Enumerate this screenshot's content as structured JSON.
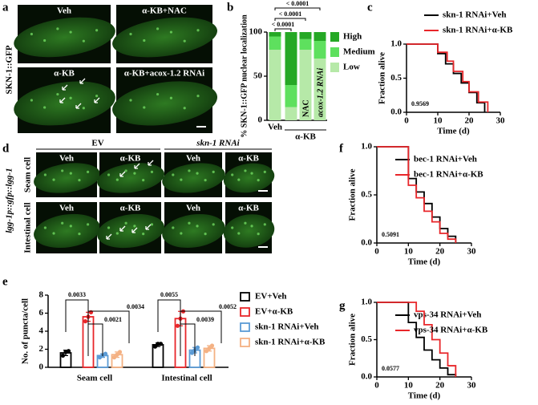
{
  "figure": {
    "panel_labels": [
      "a",
      "b",
      "c",
      "d",
      "e",
      "f",
      "g"
    ],
    "panel_a": {
      "ylabel": "SKN-1::GFP",
      "images": [
        "Veh",
        "α-KB+NAC",
        "α-KB",
        "α-KB+acox-1.2 RNAi"
      ]
    },
    "panel_d": {
      "ylabel": "lgg-1p::gfp::lgg-1",
      "groups": [
        "EV",
        "skn-1 RNAi"
      ],
      "rows": [
        "Seam cell",
        "Intestinal cell"
      ],
      "images": [
        "Veh",
        "α-KB",
        "Veh",
        "α-KB",
        "Veh",
        "α-KB",
        "Veh",
        "α-KB"
      ]
    }
  },
  "chart_data": [
    {
      "type": "stacked_bar",
      "ylabel": "% SKN-1::GFP nuclear localization",
      "categories": [
        "Veh",
        null,
        "NAC",
        "acox-1.2 RNAi"
      ],
      "group_label": "α-KB",
      "series": [
        {
          "name": "High",
          "color": "#25a825",
          "values": [
            5,
            60,
            8,
            10
          ]
        },
        {
          "name": "Medium",
          "color": "#5ee05e",
          "values": [
            15,
            25,
            12,
            20
          ]
        },
        {
          "name": "Low",
          "color": "#b6e9a8",
          "values": [
            80,
            15,
            80,
            70
          ]
        }
      ],
      "ylim": [
        0,
        100
      ],
      "yticks": [
        0,
        50,
        100
      ],
      "annotations": [
        "< 0.0001",
        "< 0.0001",
        "< 0.0001"
      ]
    },
    {
      "type": "line",
      "step": true,
      "ylabel": "Fraction alive",
      "xlabel": "Time (d)",
      "legend": "top",
      "xlim": [
        0,
        30
      ],
      "xticks": [
        0,
        10,
        20,
        30
      ],
      "ylim": [
        0,
        1
      ],
      "yticks": [
        {
          "value": 0,
          "label": "0.0"
        },
        {
          "value": 0.5,
          "label": "0.5"
        },
        {
          "value": 1,
          "label": "1.0"
        }
      ],
      "series": [
        {
          "name": "skn-1 RNAi+Veh",
          "color": "#000000",
          "x": [
            0,
            10,
            12.5,
            15,
            17.5,
            20,
            22.5,
            25
          ],
          "values": [
            1,
            0.86,
            0.71,
            0.57,
            0.43,
            0.29,
            0.14,
            0
          ]
        },
        {
          "name": "skn-1 RNAi+α-KB",
          "color": "#e8262a",
          "x": [
            0,
            10,
            13,
            15,
            18,
            20,
            23,
            26
          ],
          "values": [
            1,
            0.88,
            0.75,
            0.6,
            0.45,
            0.3,
            0.15,
            0
          ]
        }
      ],
      "annotation": "0.9569"
    },
    {
      "type": "bar",
      "ylabel": "No. of puncta/cell",
      "categories": [
        "Seam cell",
        "Intestinal cell"
      ],
      "ylim": [
        0,
        8
      ],
      "yticks": [
        0,
        2,
        4,
        6,
        8
      ],
      "series": [
        {
          "name": "EV+Veh",
          "color": "#000000",
          "values": [
            1.6,
            2.5
          ],
          "errors": [
            0.3,
            0.2
          ],
          "points": [
            [
              1.3,
              1.7,
              1.8
            ],
            [
              2.3,
              2.6,
              2.6
            ]
          ]
        },
        {
          "name": "EV+α-KB",
          "color": "#e8262a",
          "values": [
            5.6,
            5.4
          ],
          "errors": [
            0.5,
            0.8
          ],
          "points": [
            [
              5.1,
              5.6,
              6.1
            ],
            [
              4.6,
              5.4,
              6.2
            ]
          ]
        },
        {
          "name": "skn-1 RNAi+Veh",
          "color": "#5b9bd5",
          "values": [
            1.3,
            1.9
          ],
          "errors": [
            0.2,
            0.3
          ],
          "points": [
            [
              1.1,
              1.3,
              1.5
            ],
            [
              1.6,
              1.9,
              2.2
            ]
          ]
        },
        {
          "name": "skn-1 RNAi+α-KB",
          "color": "#f4b183",
          "values": [
            1.4,
            2.1
          ],
          "errors": [
            0.3,
            0.3
          ],
          "points": [
            [
              1.1,
              1.4,
              1.7
            ],
            [
              1.8,
              2.1,
              2.4
            ]
          ]
        }
      ],
      "annotations": [
        [
          "0.0033",
          "0.0021",
          "0.0034"
        ],
        [
          "0.0055",
          "0.0039",
          "0.0052"
        ]
      ]
    },
    {
      "type": "line",
      "step": true,
      "ylabel": "Fraction alive",
      "xlabel": "Time (d)",
      "legend": "upper right",
      "xlim": [
        0,
        30
      ],
      "xticks": [
        0,
        10,
        20,
        30
      ],
      "ylim": [
        0,
        1
      ],
      "yticks": [
        {
          "value": 0,
          "label": "0.0"
        },
        {
          "value": 0.5,
          "label": "0.5"
        },
        {
          "value": 1,
          "label": "1.0"
        }
      ],
      "series": [
        {
          "name": "bec-1 RNAi+Veh",
          "color": "#000000",
          "x": [
            0,
            10,
            12.5,
            15,
            17.5,
            20,
            22.5,
            25
          ],
          "values": [
            1,
            0.67,
            0.53,
            0.41,
            0.27,
            0.15,
            0.07,
            0
          ]
        },
        {
          "name": "bec-1 RNAi+α-KB",
          "color": "#e8262a",
          "x": [
            0,
            10,
            12.5,
            15,
            17.5,
            20,
            22.5,
            25
          ],
          "values": [
            1,
            0.6,
            0.47,
            0.33,
            0.22,
            0.1,
            0.04,
            0
          ]
        }
      ],
      "annotation": "0.5091"
    },
    {
      "type": "line",
      "step": true,
      "ylabel": "Fraction alive",
      "xlabel": "Time (d)",
      "legend": "upper right",
      "xlim": [
        0,
        30
      ],
      "xticks": [
        0,
        10,
        20,
        30
      ],
      "ylim": [
        0,
        1
      ],
      "yticks": [
        {
          "value": 0,
          "label": "0.0"
        },
        {
          "value": 0.5,
          "label": "0.5"
        },
        {
          "value": 1,
          "label": "1.0"
        }
      ],
      "series": [
        {
          "name": "vps-34 RNAi+Veh",
          "color": "#000000",
          "x": [
            0,
            10,
            12.5,
            15,
            17.5,
            20,
            22.5,
            25
          ],
          "values": [
            1,
            0.73,
            0.53,
            0.36,
            0.23,
            0.12,
            0.03,
            0
          ]
        },
        {
          "name": "vps-34 RNAi+α-KB",
          "color": "#e8262a",
          "x": [
            0,
            12.5,
            15,
            17.5,
            20,
            22.5,
            25
          ],
          "values": [
            1,
            0.88,
            0.7,
            0.5,
            0.32,
            0.15,
            0
          ]
        }
      ],
      "annotation": "0.0577"
    }
  ]
}
